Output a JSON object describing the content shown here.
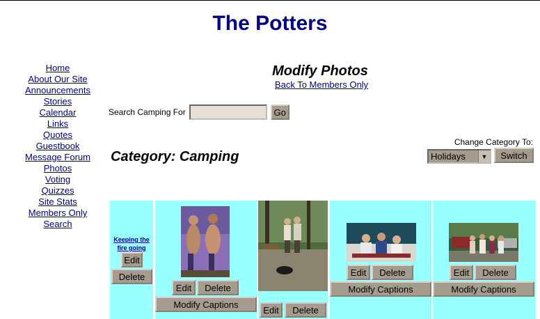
{
  "site": {
    "title": "The Potters"
  },
  "nav": {
    "items": [
      "Home",
      "About Our Site",
      "Announcements",
      "Stories",
      "Calendar",
      "Links",
      "Quotes",
      "Guestbook",
      "Message Forum",
      "Photos",
      "Voting",
      "Quizzes",
      "Site Stats",
      "Members Only",
      "Search"
    ]
  },
  "main": {
    "heading": "Modify Photos",
    "back_link": "Back To Members Only",
    "search_label": "Search Camping For",
    "search_value": "",
    "go_label": "Go",
    "category_title": "Category: Camping",
    "change_label": "Change Category To:",
    "category_selected": "Holidays",
    "switch_label": "Switch"
  },
  "gallery": {
    "photo1_caption": "Keeping the fire going",
    "edit_label": "Edit",
    "delete_label": "Delete",
    "modify_label": "Modify Captions"
  }
}
